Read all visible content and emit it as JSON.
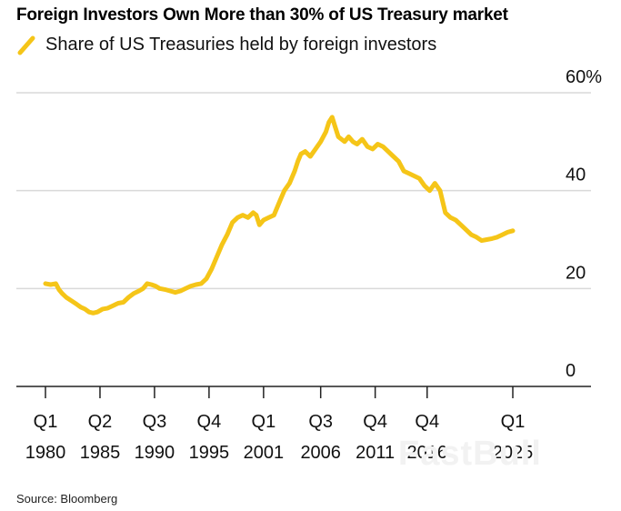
{
  "source": "Source: Bloomberg",
  "watermark": "FastBull",
  "colors": {
    "line": "#f5c518",
    "grid": "#d9d9d9",
    "axis": "#222222"
  },
  "chart_data": {
    "type": "line",
    "title": "Foreign Investors Own More than 30% of US Treasury market",
    "legend": "Share of US Treasuries held by foreign investors",
    "legend_position": "top-left",
    "xlabel": "",
    "ylabel": "",
    "grid": true,
    "xlim": [
      1979.5,
      2029.5
    ],
    "ylim": [
      0,
      60
    ],
    "y_ticks": [
      {
        "value": 0,
        "label": "0"
      },
      {
        "value": 20,
        "label": "20"
      },
      {
        "value": 40,
        "label": "40"
      },
      {
        "value": 60,
        "label": "60%"
      }
    ],
    "x_ticks": [
      {
        "value": 1980.0,
        "quarter": "Q1",
        "year": "1980"
      },
      {
        "value": 1985.25,
        "quarter": "Q2",
        "year": "1985"
      },
      {
        "value": 1990.5,
        "quarter": "Q3",
        "year": "1990"
      },
      {
        "value": 1995.75,
        "quarter": "Q4",
        "year": "1995"
      },
      {
        "value": 2001.0,
        "quarter": "Q1",
        "year": "2001"
      },
      {
        "value": 2006.5,
        "quarter": "Q3",
        "year": "2006"
      },
      {
        "value": 2011.75,
        "quarter": "Q4",
        "year": "2011"
      },
      {
        "value": 2016.75,
        "quarter": "Q4",
        "year": "2016"
      },
      {
        "value": 2025.0,
        "quarter": "Q1",
        "year": "2025"
      }
    ],
    "series": [
      {
        "name": "Share of US Treasuries held by foreign investors",
        "x": [
          1980.0,
          1980.5,
          1981.0,
          1981.3,
          1981.6,
          1982.0,
          1982.5,
          1983.0,
          1983.4,
          1983.8,
          1984.2,
          1984.6,
          1985.0,
          1985.5,
          1986.0,
          1986.5,
          1987.0,
          1987.5,
          1988.0,
          1988.5,
          1989.0,
          1989.4,
          1989.8,
          1990.2,
          1990.6,
          1991.0,
          1991.5,
          1992.0,
          1992.5,
          1993.0,
          1993.5,
          1994.0,
          1994.5,
          1995.0,
          1995.5,
          1996.0,
          1996.5,
          1997.0,
          1997.5,
          1998.0,
          1998.5,
          1999.0,
          1999.5,
          2000.0,
          2000.3,
          2000.6,
          2001.0,
          2001.5,
          2002.0,
          2002.3,
          2002.6,
          2003.0,
          2003.5,
          2004.0,
          2004.3,
          2004.6,
          2005.0,
          2005.5,
          2006.0,
          2006.5,
          2007.0,
          2007.3,
          2007.6,
          2007.9,
          2008.2,
          2008.5,
          2008.8,
          2009.2,
          2009.6,
          2010.0,
          2010.5,
          2011.0,
          2011.5,
          2012.0,
          2012.5,
          2013.0,
          2013.5,
          2014.0,
          2014.5,
          2015.0,
          2015.5,
          2016.0,
          2016.5,
          2017.0,
          2017.5,
          2018.0,
          2018.5,
          2019.0,
          2019.5,
          2020.0,
          2020.5,
          2021.0,
          2021.5,
          2022.0,
          2022.5,
          2023.0,
          2023.5,
          2024.0,
          2024.5,
          2025.0
        ],
        "values": [
          21.0,
          20.8,
          21.0,
          19.8,
          19.0,
          18.2,
          17.5,
          16.8,
          16.2,
          15.8,
          15.2,
          15.0,
          15.2,
          15.8,
          16.0,
          16.5,
          17.0,
          17.2,
          18.2,
          19.0,
          19.5,
          20.0,
          21.0,
          20.8,
          20.5,
          20.0,
          19.8,
          19.5,
          19.2,
          19.5,
          20.0,
          20.5,
          20.8,
          21.0,
          22.0,
          24.0,
          26.5,
          29.0,
          31.0,
          33.5,
          34.5,
          35.0,
          34.5,
          35.5,
          35.0,
          33.0,
          34.0,
          34.5,
          35.0,
          36.5,
          38.0,
          40.0,
          41.5,
          44.0,
          46.0,
          47.5,
          48.0,
          47.0,
          48.5,
          50.0,
          52.0,
          54.0,
          55.0,
          53.0,
          51.0,
          50.5,
          50.0,
          51.0,
          50.0,
          49.5,
          50.5,
          49.0,
          48.5,
          49.5,
          49.0,
          48.0,
          47.0,
          46.0,
          44.0,
          43.5,
          43.0,
          42.5,
          41.0,
          40.0,
          41.5,
          40.0,
          35.5,
          34.5,
          34.0,
          33.0,
          32.0,
          31.0,
          30.5,
          29.8,
          30.0,
          30.2,
          30.5,
          31.0,
          31.5,
          31.8
        ]
      }
    ]
  }
}
